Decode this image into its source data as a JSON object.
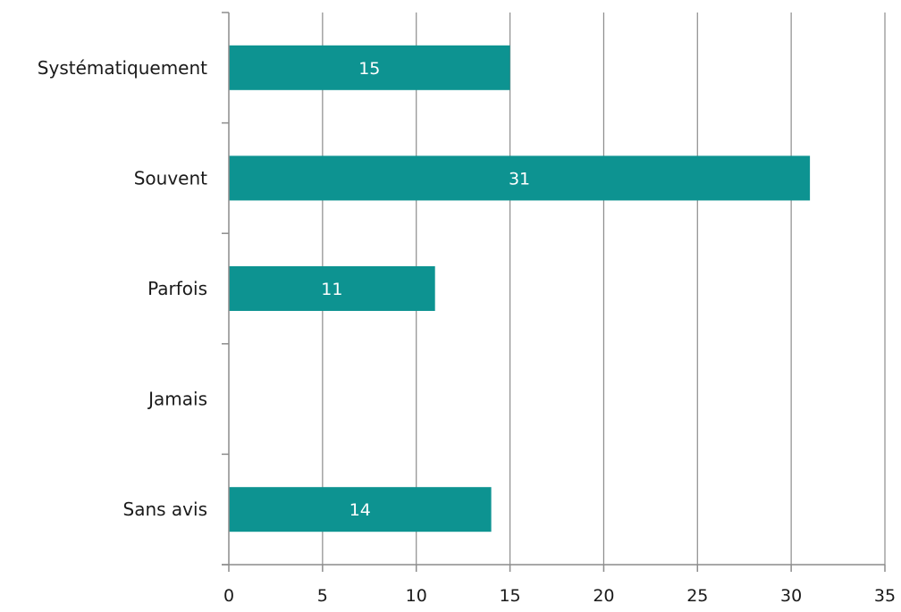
{
  "chart_data": {
    "type": "bar",
    "orientation": "horizontal",
    "categories": [
      "Systématiquement",
      "Souvent",
      "Parfois",
      "Jamais",
      "Sans avis"
    ],
    "values": [
      15,
      31,
      11,
      0,
      14
    ],
    "data_labels": [
      "15",
      "31",
      "11",
      "",
      "14"
    ],
    "xlim": [
      0,
      35
    ],
    "x_ticks": [
      0,
      5,
      10,
      15,
      20,
      25,
      30,
      35
    ],
    "title": "",
    "xlabel": "",
    "ylabel": "",
    "grid": "vertical",
    "legend": "none",
    "bar_color": "#0d9391",
    "grid_color": "#8c8c8c"
  }
}
